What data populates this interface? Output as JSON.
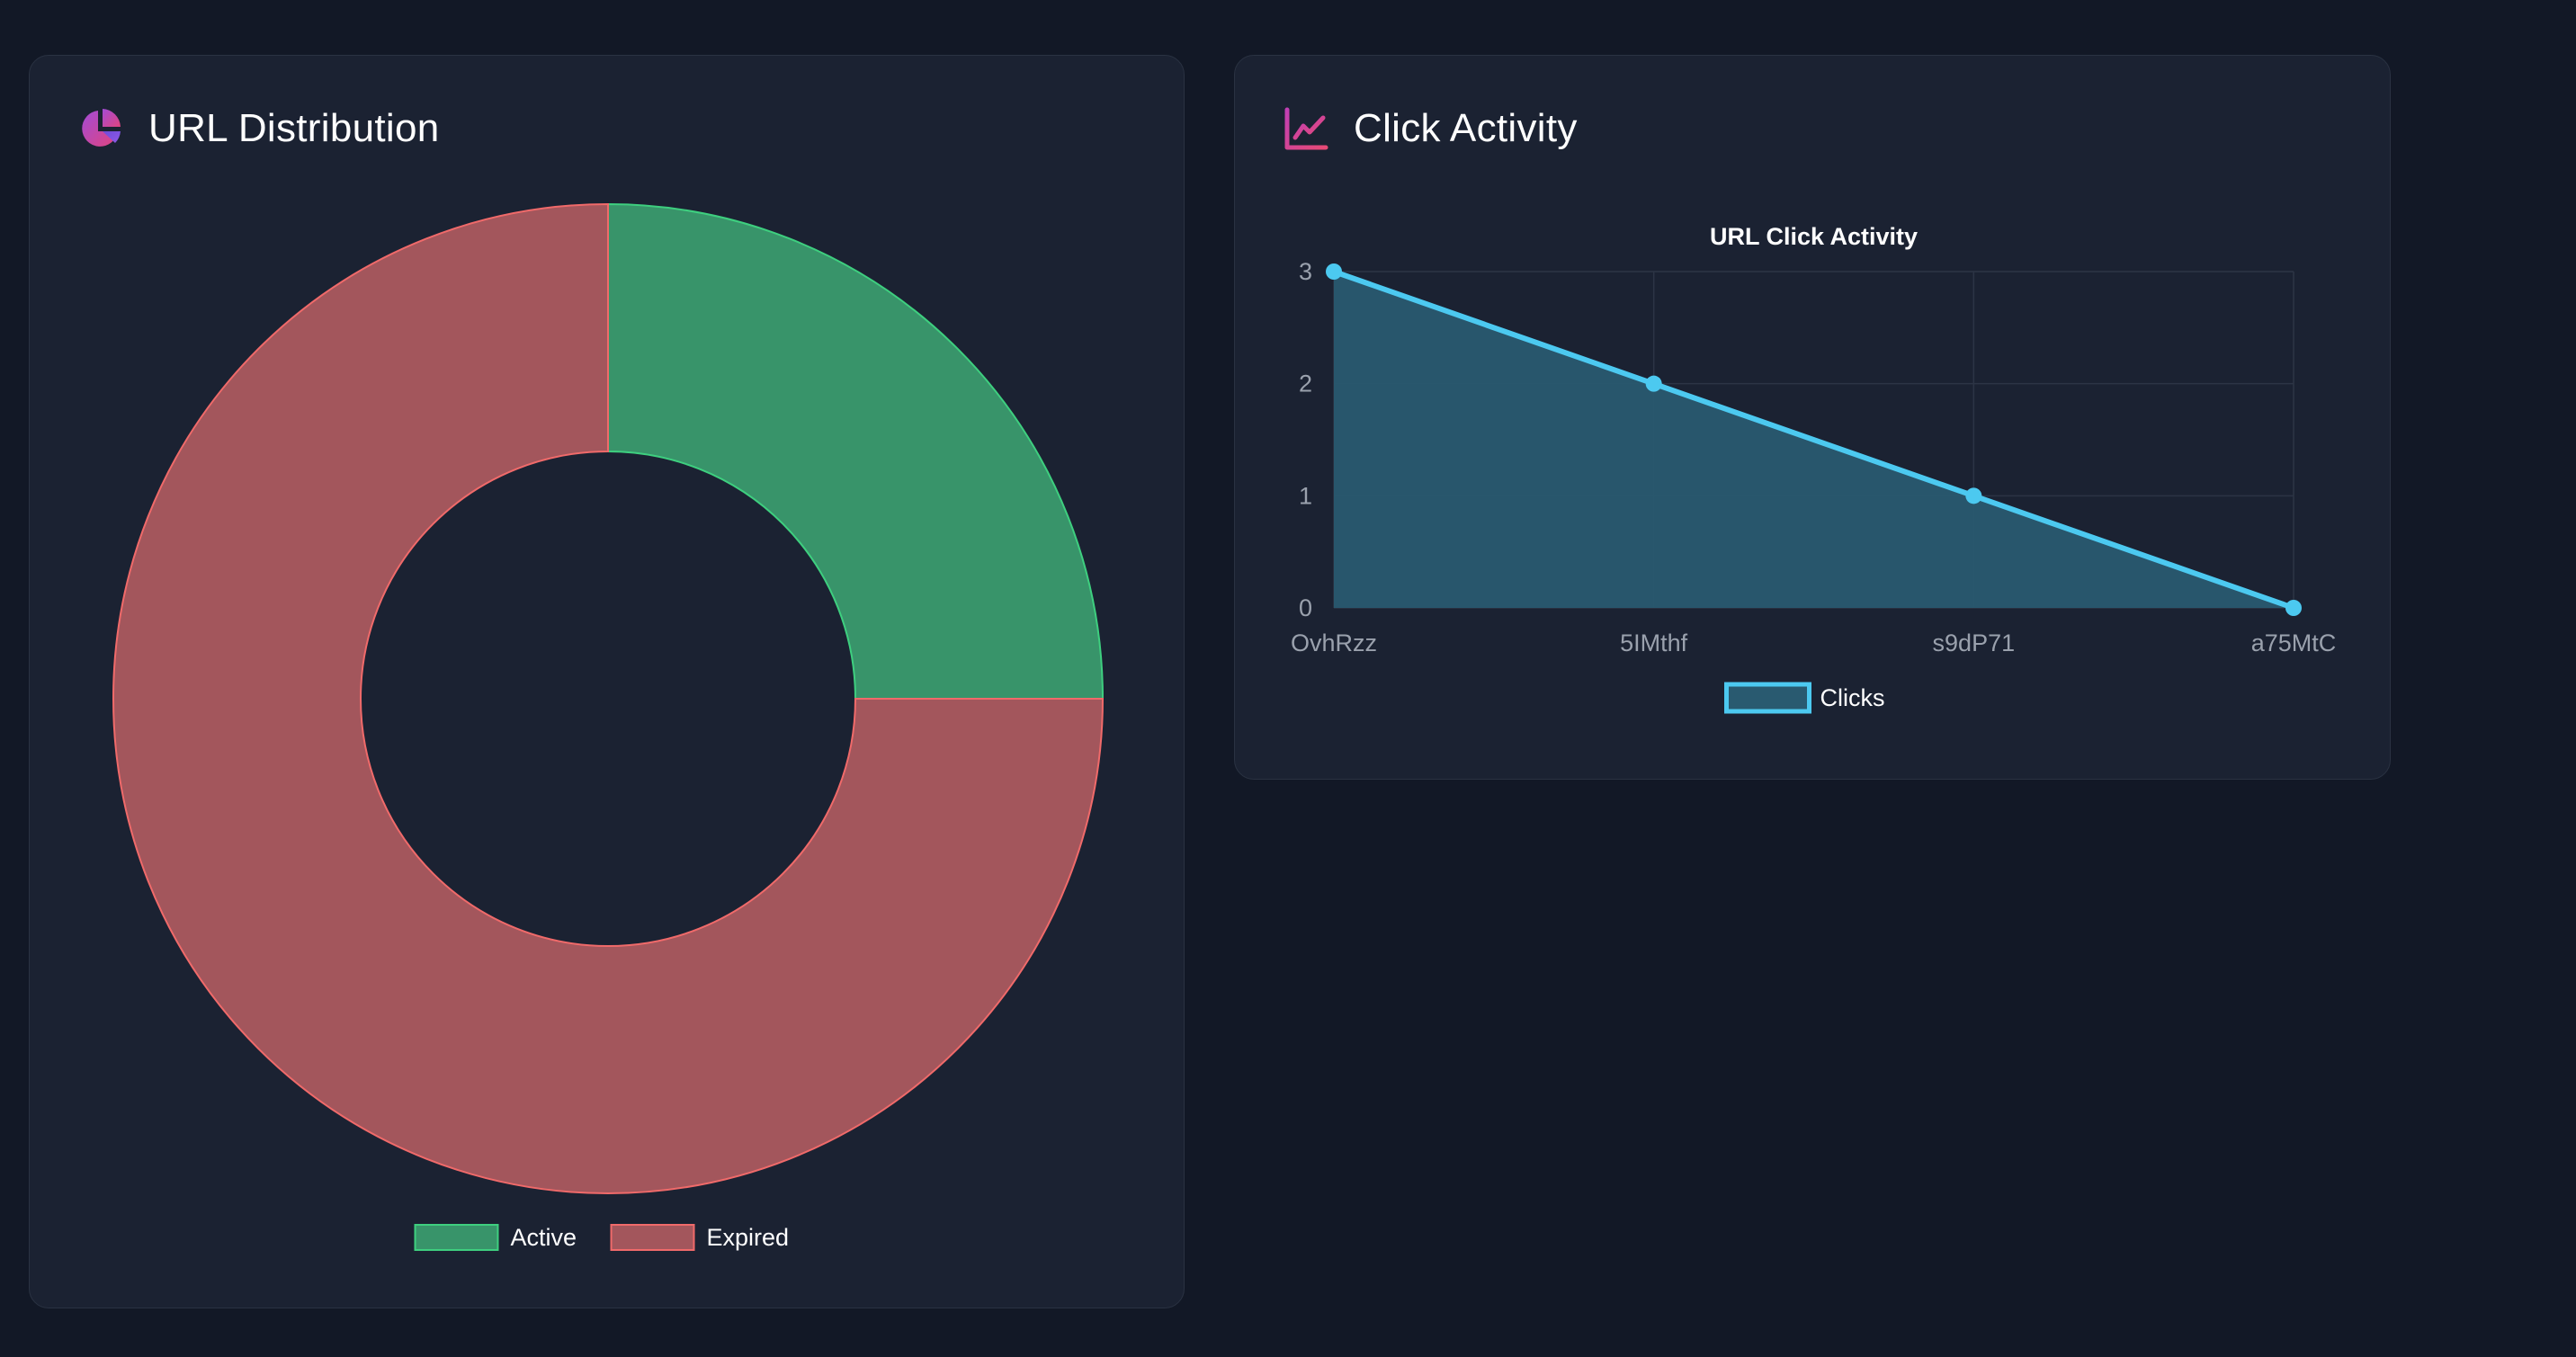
{
  "cards": {
    "distribution": {
      "title": "URL Distribution",
      "icon": "pie-chart-icon"
    },
    "clicks": {
      "title": "Click Activity",
      "icon": "line-chart-icon"
    }
  },
  "chart_data": [
    {
      "type": "pie",
      "variant": "doughnut",
      "title": "URL Distribution",
      "categories": [
        "Active",
        "Expired"
      ],
      "values": [
        1,
        3
      ],
      "colors": [
        "#38946a",
        "#a3565c"
      ],
      "border_colors": [
        "#3ecf7f",
        "#f06a6a"
      ],
      "legend": "bottom"
    },
    {
      "type": "line",
      "title": "URL Click Activity",
      "categories": [
        "OvhRzz",
        "5IMthf",
        "s9dP71",
        "a75MtC"
      ],
      "series": [
        {
          "name": "Clicks",
          "values": [
            3,
            2,
            1,
            0
          ],
          "color": "#4cc9f0",
          "fill": "#295a70"
        }
      ],
      "yticks": [
        0,
        1,
        2,
        3
      ],
      "ylim": [
        0,
        3
      ],
      "xlabel": "",
      "ylabel": "",
      "grid": true,
      "legend": "bottom"
    }
  ]
}
